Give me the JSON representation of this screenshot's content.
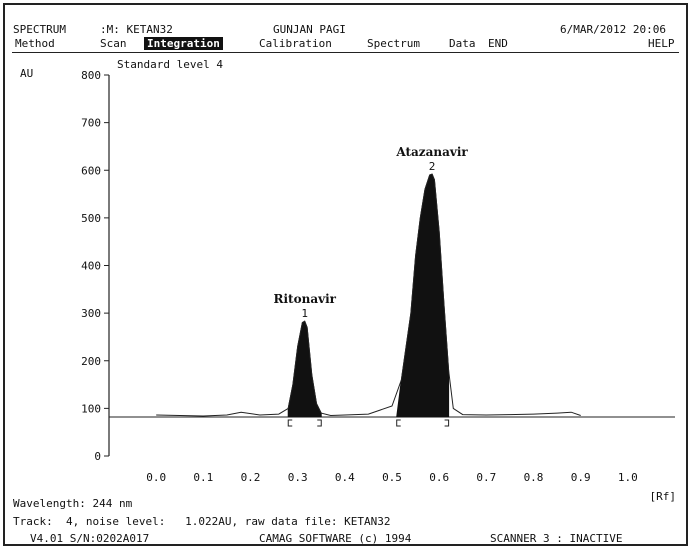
{
  "header": {
    "app_name": "SPECTRUM",
    "method_file": ":M: KETAN32",
    "user": "GUNJAN PAGI",
    "datetime": "6/MAR/2012 20:06"
  },
  "menu": {
    "items": [
      "Method",
      "Scan",
      "Integration",
      "Calibration",
      "Spectrum",
      "Data",
      "END"
    ],
    "active_index": 2,
    "help": "HELP"
  },
  "chart_data": {
    "type": "line",
    "title": "Standard level 4",
    "ylabel": "AU",
    "xlabel": "",
    "xlim": [
      -0.1,
      1.1
    ],
    "ylim": [
      0,
      800
    ],
    "x_ticks": [
      "0.0",
      "0.1",
      "0.2",
      "0.3",
      "0.4",
      "0.5",
      "0.6",
      "0.7",
      "0.8",
      "0.9",
      "1.0"
    ],
    "y_ticks": [
      "0",
      "100",
      "200",
      "300",
      "400",
      "500",
      "600",
      "700",
      "800"
    ],
    "baseline": 82,
    "series": [
      {
        "x": [
          0.0,
          0.05,
          0.1,
          0.15,
          0.18,
          0.22,
          0.26,
          0.28,
          0.29,
          0.3,
          0.31,
          0.315,
          0.32,
          0.33,
          0.34,
          0.35,
          0.37,
          0.4,
          0.45,
          0.5,
          0.52,
          0.54,
          0.55,
          0.56,
          0.57,
          0.58,
          0.585,
          0.59,
          0.6,
          0.61,
          0.62,
          0.63,
          0.65,
          0.7,
          0.75,
          0.8,
          0.85,
          0.88,
          0.9
        ],
        "y": [
          86,
          85,
          84,
          86,
          92,
          86,
          88,
          100,
          150,
          230,
          280,
          283,
          270,
          170,
          110,
          90,
          85,
          86,
          88,
          105,
          160,
          300,
          420,
          500,
          560,
          590,
          592,
          580,
          470,
          320,
          180,
          100,
          87,
          86,
          87,
          88,
          90,
          92,
          85
        ]
      }
    ],
    "peaks": [
      {
        "number": "1",
        "name": "Ritonavir",
        "rf": 0.315,
        "height": 283,
        "start": 0.28,
        "end": 0.35
      },
      {
        "number": "2",
        "name": "Atazanavir",
        "rf": 0.585,
        "height": 592,
        "start": 0.51,
        "end": 0.62
      }
    ],
    "rf_label": "[Rf]",
    "grid": false
  },
  "footer": {
    "wavelength": "Wavelength: 244 nm",
    "track": "Track:  4, noise level:   1.022AU, raw data file: KETAN32",
    "version": "V4.01 S/N:0202A017",
    "software": "CAMAG SOFTWARE (c) 1994",
    "scanner": "SCANNER 3 : INACTIVE"
  }
}
